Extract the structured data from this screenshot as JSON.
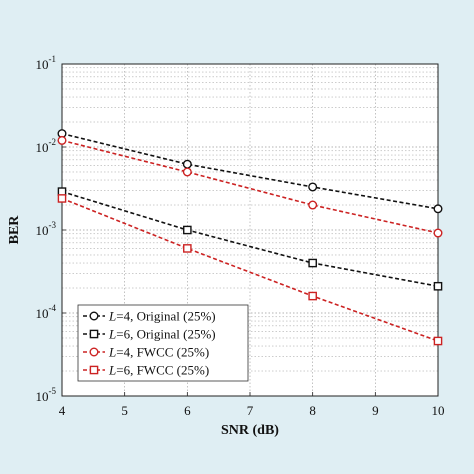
{
  "chart_data": {
    "type": "line",
    "xlabel": "SNR (dB)",
    "ylabel": "BER",
    "x": [
      4,
      6,
      8,
      10
    ],
    "xlim": [
      4,
      10
    ],
    "xticks": [
      "4",
      "5",
      "6",
      "7",
      "8",
      "9",
      "10"
    ],
    "y_scale": "log",
    "ylim": [
      1e-05,
      0.1
    ],
    "yticks": [
      {
        "base": "10",
        "exp": "-1"
      },
      {
        "base": "10",
        "exp": "-2"
      },
      {
        "base": "10",
        "exp": "-3"
      },
      {
        "base": "10",
        "exp": "-4"
      },
      {
        "base": "10",
        "exp": "-5"
      }
    ],
    "grid": true,
    "legend_position": "bottom-left",
    "series": [
      {
        "name_var": "L",
        "name_rest": "=4, Original (25%)",
        "marker": "circle",
        "color": "#111111",
        "values": [
          0.0145,
          0.0062,
          0.0033,
          0.0018
        ]
      },
      {
        "name_var": "L",
        "name_rest": "=6, Original (25%)",
        "marker": "square",
        "color": "#111111",
        "values": [
          0.0029,
          0.001,
          0.0004,
          0.00021
        ]
      },
      {
        "name_var": "L",
        "name_rest": "=4, FWCC (25%)",
        "marker": "circle",
        "color": "#cc2222",
        "values": [
          0.012,
          0.005,
          0.002,
          0.00092
        ]
      },
      {
        "name_var": "L",
        "name_rest": "=6, FWCC (25%)",
        "marker": "square",
        "color": "#cc2222",
        "values": [
          0.0024,
          0.0006,
          0.00016,
          4.6e-05
        ]
      }
    ]
  }
}
